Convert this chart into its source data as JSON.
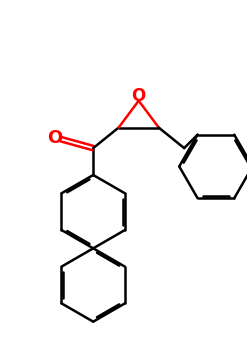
{
  "bg_color": "#ffffff",
  "bond_color": "#000000",
  "o_color": "#ff0000",
  "lw": 1.8,
  "dbo": 0.04,
  "figsize": [
    2.5,
    3.5
  ],
  "dpi": 100,
  "xlim": [
    0,
    5.0
  ],
  "ylim": [
    0,
    7.0
  ],
  "r_benz": 0.75,
  "carbonyl_o_label_fontsize": 13,
  "epox_o_label_fontsize": 12
}
